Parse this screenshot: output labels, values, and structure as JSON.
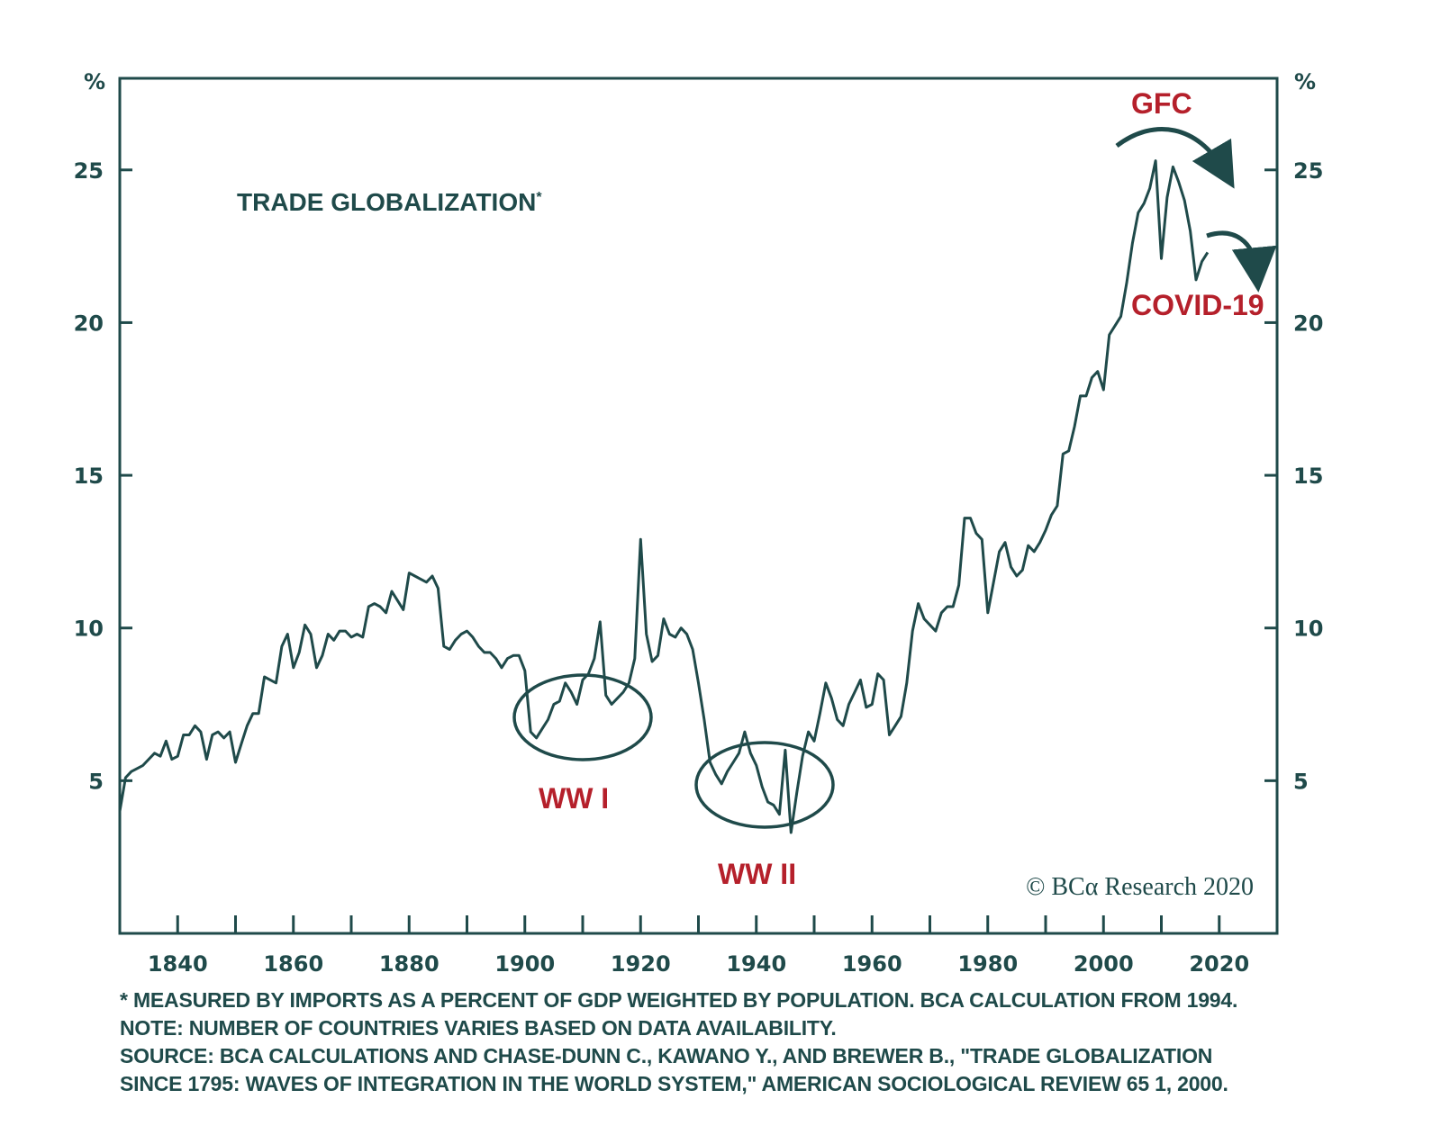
{
  "chart_data": {
    "type": "line",
    "title": "TRADE GLOBALIZATION",
    "title_marker": "*",
    "y_unit_left": "%",
    "y_unit_right": "%",
    "xlim": [
      1830,
      2030
    ],
    "ylim": [
      0,
      28
    ],
    "x_ticks": [
      1840,
      1860,
      1880,
      1900,
      1920,
      1940,
      1960,
      1980,
      2000,
      2020
    ],
    "y_ticks": [
      5,
      10,
      15,
      20,
      25
    ],
    "grid": false,
    "line_color": "#1f4a4a",
    "accent_color": "#b5202b",
    "series": [
      {
        "x": [
          1830,
          1831,
          1832,
          1833,
          1834,
          1835,
          1836,
          1837,
          1838,
          1839,
          1840,
          1841,
          1842,
          1843,
          1844,
          1845,
          1846,
          1847,
          1848,
          1849,
          1850,
          1851,
          1852,
          1853,
          1854,
          1855,
          1856,
          1857,
          1858,
          1859,
          1860,
          1861,
          1862,
          1863,
          1864,
          1865,
          1866,
          1867,
          1868,
          1869,
          1870,
          1871,
          1872,
          1873,
          1874,
          1875,
          1876,
          1877,
          1878,
          1879,
          1880,
          1881,
          1882,
          1883,
          1884,
          1885,
          1886,
          1887,
          1888,
          1889,
          1890,
          1891,
          1892,
          1893,
          1894,
          1895,
          1896,
          1897,
          1898,
          1899,
          1900,
          1901,
          1902,
          1903,
          1904,
          1905,
          1906,
          1907,
          1908,
          1909,
          1910,
          1911,
          1912,
          1913,
          1914,
          1915,
          1916,
          1917,
          1918,
          1919,
          1920,
          1921,
          1922,
          1923,
          1924,
          1925,
          1926,
          1927,
          1928,
          1929,
          1930,
          1931,
          1932,
          1933,
          1934,
          1935,
          1936,
          1937,
          1938,
          1939,
          1940,
          1941,
          1942,
          1943,
          1944,
          1945,
          1946,
          1947,
          1948,
          1949,
          1950,
          1951,
          1952,
          1953,
          1954,
          1955,
          1956,
          1957,
          1958,
          1959,
          1960,
          1961,
          1962,
          1963,
          1964,
          1965,
          1966,
          1967,
          1968,
          1969,
          1970,
          1971,
          1972,
          1973,
          1974,
          1975,
          1976,
          1977,
          1978,
          1979,
          1980,
          1981,
          1982,
          1983,
          1984,
          1985,
          1986,
          1987,
          1988,
          1989,
          1990,
          1991,
          1992,
          1993,
          1994,
          1995,
          1996,
          1997,
          1998,
          1999,
          2000,
          2001,
          2002,
          2003,
          2004,
          2005,
          2006,
          2007,
          2008,
          2009,
          2010,
          2011,
          2012,
          2013,
          2014,
          2015,
          2016,
          2017,
          2018
        ],
        "y": [
          4.0,
          5.1,
          5.3,
          5.4,
          5.5,
          5.7,
          5.9,
          5.8,
          6.3,
          5.7,
          5.8,
          6.5,
          6.5,
          6.8,
          6.6,
          5.7,
          6.5,
          6.6,
          6.4,
          6.6,
          5.6,
          6.2,
          6.8,
          7.2,
          7.2,
          8.4,
          8.3,
          8.2,
          9.4,
          9.8,
          8.7,
          9.2,
          10.1,
          9.8,
          8.7,
          9.1,
          9.8,
          9.6,
          9.9,
          9.9,
          9.7,
          9.8,
          9.7,
          10.7,
          10.8,
          10.7,
          10.5,
          11.2,
          10.9,
          10.6,
          11.8,
          11.7,
          11.6,
          11.5,
          11.7,
          11.3,
          9.4,
          9.3,
          9.6,
          9.8,
          9.9,
          9.7,
          9.4,
          9.2,
          9.2,
          9.0,
          8.7,
          9.0,
          9.1,
          9.1,
          8.6,
          6.6,
          6.4,
          6.7,
          7.0,
          7.5,
          7.6,
          8.2,
          7.9,
          7.5,
          8.3,
          8.5,
          9.0,
          10.2,
          7.8,
          7.5,
          7.7,
          7.9,
          8.2,
          9.0,
          12.9,
          9.8,
          8.9,
          9.1,
          10.3,
          9.8,
          9.7,
          10.0,
          9.8,
          9.3,
          8.2,
          7.0,
          5.6,
          5.2,
          4.9,
          5.3,
          5.6,
          5.9,
          6.6,
          5.9,
          5.5,
          4.8,
          4.3,
          4.2,
          3.9,
          6.0,
          3.3,
          4.6,
          5.8,
          6.6,
          6.3,
          7.2,
          8.2,
          7.7,
          7.0,
          6.8,
          7.5,
          7.9,
          8.3,
          7.4,
          7.5,
          8.5,
          8.3,
          6.5,
          6.8,
          7.1,
          8.2,
          9.9,
          10.8,
          10.3,
          10.1,
          9.9,
          10.5,
          10.7,
          10.7,
          11.4,
          13.6,
          13.6,
          13.1,
          12.9,
          10.5,
          11.5,
          12.5,
          12.8,
          12.0,
          11.7,
          11.9,
          12.7,
          12.5,
          12.8,
          13.2,
          13.7,
          14.0,
          15.7,
          15.8,
          16.6,
          17.6,
          17.6,
          18.2,
          18.4,
          17.8,
          19.6,
          19.9,
          20.2,
          21.3,
          22.6,
          23.6,
          23.9,
          24.4,
          25.3,
          22.1,
          24.1,
          25.1,
          24.6,
          24.0,
          23.0,
          21.4,
          22.0,
          22.3
        ]
      }
    ],
    "annotations": {
      "gfc": "GFC",
      "covid": "COVID-19",
      "ww1": "WW I",
      "ww2": "WW II"
    },
    "copyright": "© BCα Research 2020"
  },
  "footnotes": {
    "line1": "* MEASURED BY IMPORTS AS A PERCENT OF GDP WEIGHTED BY POPULATION. BCA CALCULATION FROM 1994.",
    "line2": "NOTE: NUMBER OF COUNTRIES VARIES BASED ON DATA AVAILABILITY.",
    "line3": "SOURCE: BCA CALCULATIONS AND CHASE-DUNN C., KAWANO Y., AND BREWER B., \"TRADE GLOBALIZATION",
    "line4": "SINCE 1795: WAVES OF INTEGRATION IN THE WORLD SYSTEM,\" AMERICAN SOCIOLOGICAL REVIEW 65 1, 2000."
  }
}
